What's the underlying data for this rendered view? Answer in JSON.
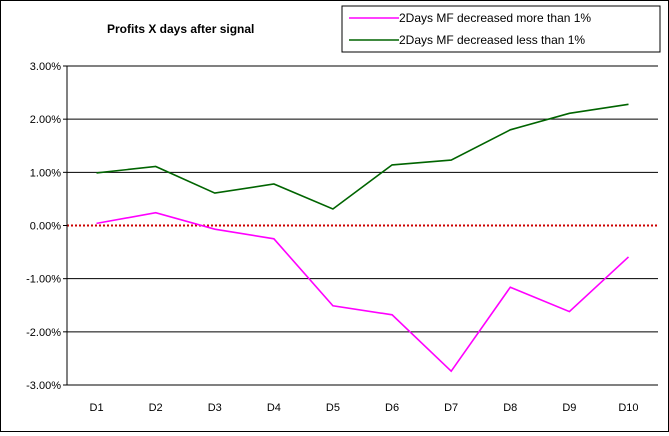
{
  "chart_data": {
    "type": "line",
    "title": "Profits X days after signal",
    "xlabel": "",
    "ylabel": "",
    "categories": [
      "D1",
      "D2",
      "D3",
      "D4",
      "D5",
      "D6",
      "D7",
      "D8",
      "D9",
      "D10"
    ],
    "y_ticks": [
      "3.00%",
      "2.00%",
      "1.00%",
      "0.00%",
      "-1.00%",
      "-2.00%",
      "-3.00%"
    ],
    "ylim": [
      -3.0,
      3.0
    ],
    "y_unit": "%",
    "grid": true,
    "legend_position": "top-right",
    "zero_line": {
      "color": "#cc0000",
      "style": "dotted"
    },
    "series": [
      {
        "name": "2Days MF decreased more than 1%",
        "color": "#ff00ff",
        "values": [
          0.04,
          0.24,
          -0.07,
          -0.25,
          -1.51,
          -1.68,
          -2.74,
          -1.16,
          -1.62,
          -0.59
        ]
      },
      {
        "name": "2Days MF decreased less than 1%",
        "color": "#006400",
        "values": [
          0.99,
          1.11,
          0.61,
          0.78,
          0.31,
          1.14,
          1.23,
          1.8,
          2.11,
          2.28
        ]
      }
    ]
  }
}
